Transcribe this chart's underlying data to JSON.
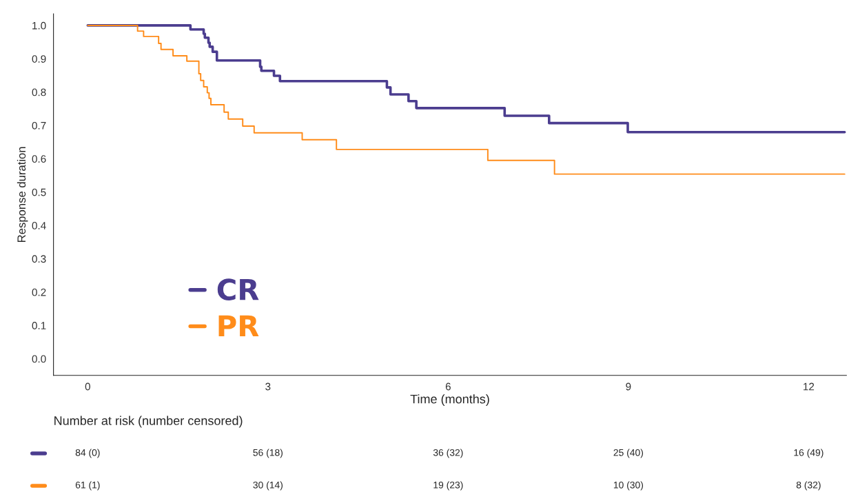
{
  "chart_data": {
    "type": "step",
    "xlabel": "Time (months)",
    "ylabel": "Response duration",
    "xlim": [
      -0.57,
      12.63
    ],
    "ylim": [
      -0.05,
      1.035
    ],
    "xticks": [
      0,
      3,
      6,
      9,
      12
    ],
    "yticks": [
      {
        "value": 0,
        "label": "0.0"
      },
      {
        "value": 0.1,
        "label": "0.1"
      },
      {
        "value": 0.2,
        "label": "0.2"
      },
      {
        "value": 0.3,
        "label": "0.3"
      },
      {
        "value": 0.4,
        "label": "0.4"
      },
      {
        "value": 0.5,
        "label": "0.5"
      },
      {
        "value": 0.6,
        "label": "0.6"
      },
      {
        "value": 0.7,
        "label": "0.7"
      },
      {
        "value": 0.8,
        "label": "0.8"
      },
      {
        "value": 0.9,
        "label": "0.9"
      },
      {
        "value": 1.0,
        "label": "1.0"
      }
    ],
    "grid": false,
    "legend": "bottom left",
    "marker": "none",
    "line_style": "solid",
    "series": [
      {
        "name": "CR",
        "color": "#4b3d8f",
        "x": [
          0,
          1.71,
          1.93,
          1.95,
          2.01,
          2.03,
          2.08,
          2.15,
          2.87,
          2.89,
          3.1,
          3.2,
          4.98,
          5.04,
          5.34,
          5.47,
          6.94,
          7.68,
          8.99,
          12.6
        ],
        "values": [
          1.0,
          0.988,
          0.975,
          0.963,
          0.948,
          0.936,
          0.921,
          0.895,
          0.876,
          0.864,
          0.849,
          0.833,
          0.814,
          0.793,
          0.773,
          0.752,
          0.729,
          0.707,
          0.68,
          0.68
        ]
      },
      {
        "name": "PR",
        "color": "#ff8c1a",
        "x": [
          0,
          0.83,
          0.93,
          1.18,
          1.22,
          1.42,
          1.65,
          1.85,
          1.88,
          1.93,
          1.99,
          2.02,
          2.05,
          2.27,
          2.34,
          2.58,
          2.77,
          3.57,
          4.14,
          6.66,
          7.77,
          12.6
        ],
        "values": [
          1.0,
          0.983,
          0.967,
          0.946,
          0.928,
          0.909,
          0.893,
          0.855,
          0.835,
          0.816,
          0.798,
          0.781,
          0.762,
          0.74,
          0.719,
          0.698,
          0.678,
          0.657,
          0.628,
          0.595,
          0.554,
          0.554
        ]
      }
    ],
    "annotations": [
      "Number at risk (number censored)",
      "84 (0)",
      "56 (18)",
      "36 (32)",
      "25 (40)",
      "16 (49)",
      "61 (1)",
      "30 (14)",
      "19 (23)",
      "10 (30)",
      "8 (32)"
    ]
  }
}
